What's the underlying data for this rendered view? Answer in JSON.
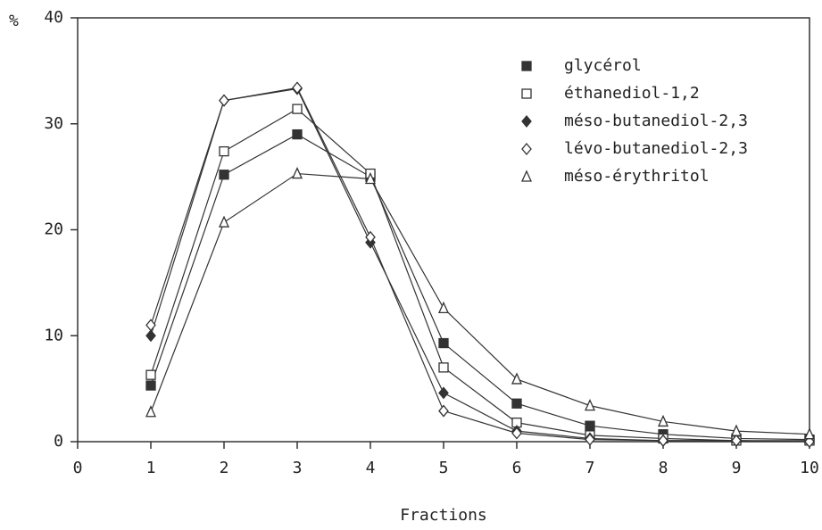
{
  "chart_data": {
    "type": "line",
    "y_label": "%",
    "x_label": "Fractions",
    "x": [
      1,
      2,
      3,
      4,
      5,
      6,
      7,
      8,
      9,
      10
    ],
    "xlim": [
      0,
      10
    ],
    "xticks": [
      0,
      1,
      2,
      3,
      4,
      5,
      6,
      7,
      8,
      9,
      10
    ],
    "ylim": [
      0,
      40
    ],
    "yticks": [
      0,
      10,
      20,
      30,
      40
    ],
    "legend": "upper right",
    "color": "#333333",
    "series": [
      {
        "name": "glycérol",
        "marker": "filled-square",
        "values": [
          5.3,
          25.2,
          29.0,
          25.0,
          9.3,
          3.6,
          1.5,
          0.7,
          0.3,
          0.2
        ]
      },
      {
        "name": "éthanediol-1,2",
        "marker": "square",
        "values": [
          6.3,
          27.4,
          31.4,
          25.3,
          7.0,
          1.8,
          0.6,
          0.3,
          0.1,
          0.1
        ]
      },
      {
        "name": "méso-butanediol-2,3",
        "marker": "filled-diamond",
        "values": [
          10.0,
          32.2,
          33.3,
          18.8,
          4.6,
          1.0,
          0.3,
          0.1,
          0.1,
          0.0
        ]
      },
      {
        "name": "lévo-butanediol-2,3",
        "marker": "diamond",
        "values": [
          11.0,
          32.2,
          33.4,
          19.3,
          2.9,
          0.8,
          0.2,
          0.1,
          0.1,
          0.0
        ]
      },
      {
        "name": "méso-érythritol",
        "marker": "triangle",
        "values": [
          2.8,
          20.7,
          25.3,
          24.8,
          12.6,
          5.9,
          3.4,
          1.9,
          1.0,
          0.7
        ]
      }
    ]
  }
}
